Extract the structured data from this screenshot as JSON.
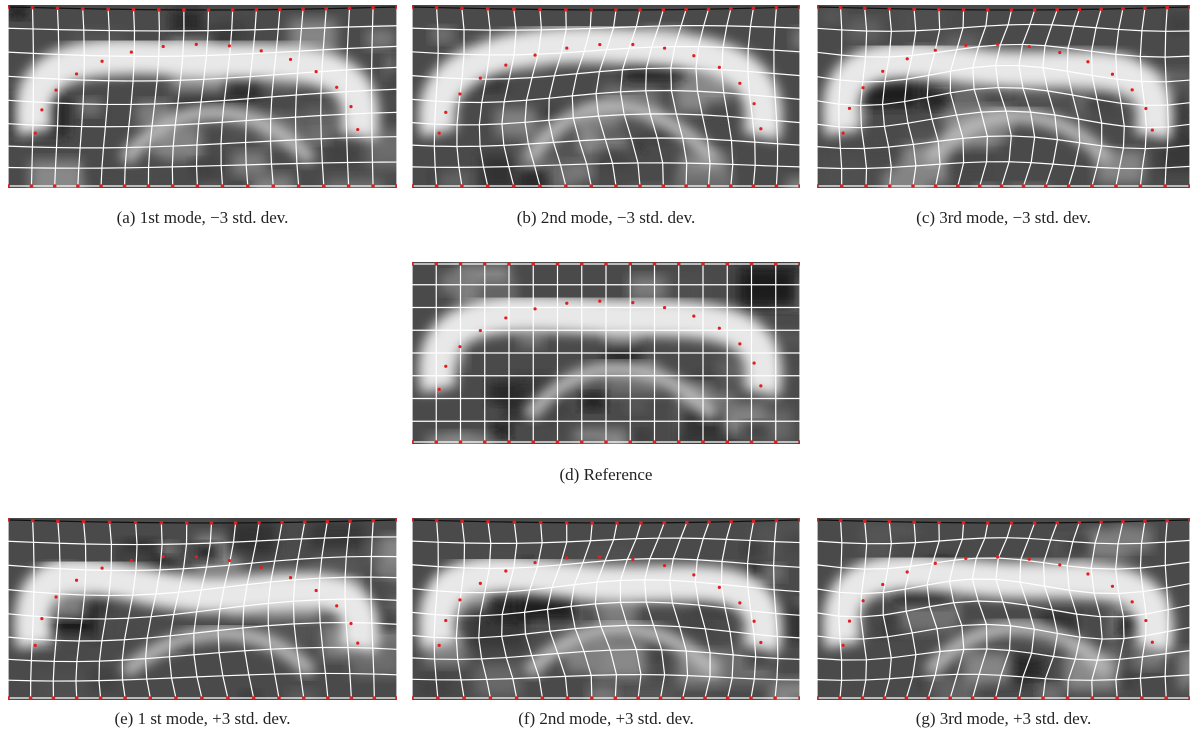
{
  "figure": {
    "panels": [
      {
        "caption": "(a) 1st mode, −3 std. dev."
      },
      {
        "caption": "(b) 2nd mode, −3 std. dev."
      },
      {
        "caption": "(c) 3rd mode, −3 std. dev."
      },
      {
        "caption": "(d) Reference"
      },
      {
        "caption": "(e) 1 st mode, +3 std. dev."
      },
      {
        "caption": "(f) 2nd mode, +3 std. dev."
      },
      {
        "caption": "(g) 3rd mode, +3 std. dev."
      }
    ]
  }
}
